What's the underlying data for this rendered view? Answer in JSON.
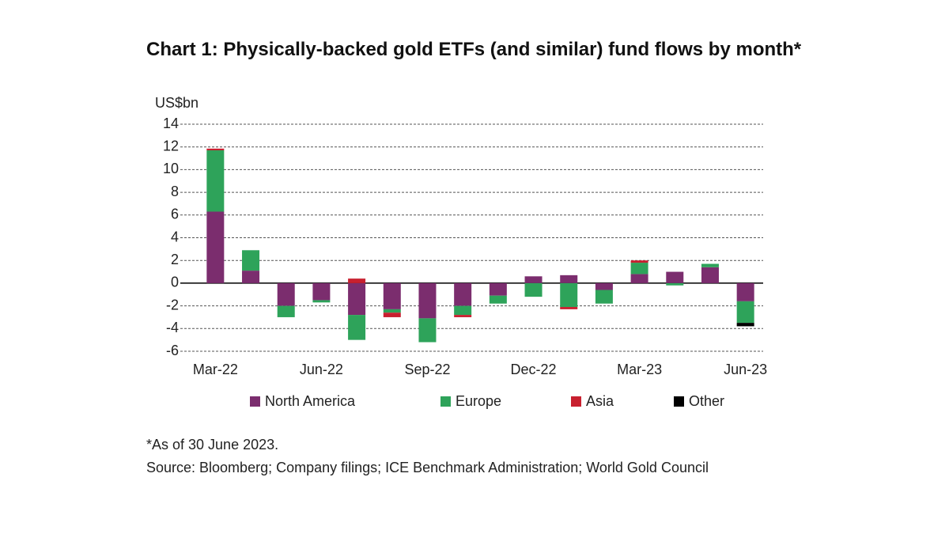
{
  "chart_data": {
    "type": "bar",
    "stacked": true,
    "title": "Chart 1: Physically-backed gold ETFs (and similar) fund flows by month*",
    "y_label": "US$bn",
    "categories": [
      "Mar-22",
      null,
      null,
      "Jun-22",
      null,
      null,
      "Sep-22",
      null,
      null,
      "Dec-22",
      null,
      null,
      "Mar-23",
      null,
      null,
      "Jun-23"
    ],
    "series": [
      {
        "name": "North America",
        "color": "#7b2d6e",
        "values": [
          6.3,
          1.1,
          -2.0,
          -1.5,
          -2.8,
          -2.3,
          -3.1,
          -2.0,
          -1.1,
          0.6,
          0.7,
          -0.6,
          0.8,
          1.0,
          1.4,
          -1.6
        ]
      },
      {
        "name": "Europe",
        "color": "#2ea35a",
        "values": [
          5.4,
          1.8,
          -1.0,
          -0.2,
          -2.2,
          -0.3,
          -2.1,
          -0.8,
          -0.7,
          -1.2,
          -2.1,
          -1.2,
          1.0,
          -0.2,
          0.3,
          -1.9
        ]
      },
      {
        "name": "Asia",
        "color": "#c8202f",
        "values": [
          0.15,
          0,
          0,
          0,
          0.4,
          -0.4,
          0,
          -0.2,
          0,
          0,
          -0.2,
          0,
          0.2,
          0,
          0,
          0
        ]
      },
      {
        "name": "Other",
        "color": "#000000",
        "values": [
          0,
          0,
          0,
          0,
          0,
          0,
          0,
          0,
          0,
          0,
          0,
          0,
          0,
          0,
          0,
          -0.3
        ]
      }
    ],
    "ylim": [
      -6,
      14
    ],
    "yticks": [
      -6,
      -4,
      -2,
      0,
      2,
      4,
      6,
      8,
      10,
      12,
      14
    ],
    "grid": true,
    "notes": [
      "*As of 30 June 2023.",
      "Source: Bloomberg; Company filings; ICE Benchmark Administration; World Gold Council"
    ]
  }
}
